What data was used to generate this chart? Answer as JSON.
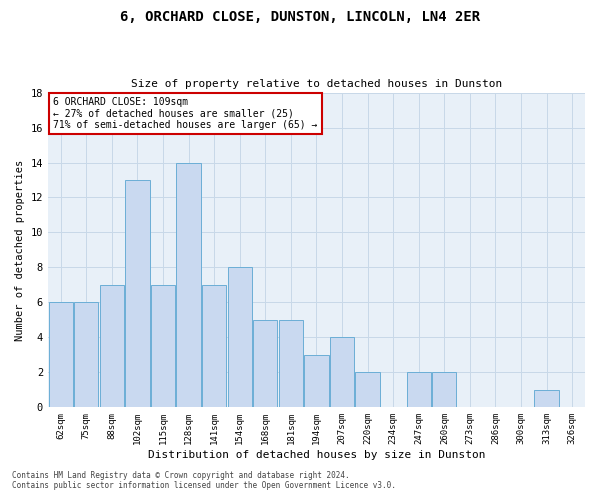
{
  "title": "6, ORCHARD CLOSE, DUNSTON, LINCOLN, LN4 2ER",
  "subtitle": "Size of property relative to detached houses in Dunston",
  "xlabel": "Distribution of detached houses by size in Dunston",
  "ylabel": "Number of detached properties",
  "bins": [
    "62sqm",
    "75sqm",
    "88sqm",
    "102sqm",
    "115sqm",
    "128sqm",
    "141sqm",
    "154sqm",
    "168sqm",
    "181sqm",
    "194sqm",
    "207sqm",
    "220sqm",
    "234sqm",
    "247sqm",
    "260sqm",
    "273sqm",
    "286sqm",
    "300sqm",
    "313sqm",
    "326sqm"
  ],
  "values": [
    6,
    6,
    7,
    13,
    7,
    14,
    7,
    8,
    5,
    5,
    3,
    4,
    2,
    0,
    2,
    2,
    0,
    0,
    0,
    1,
    0
  ],
  "bar_color": "#c9d9f0",
  "bar_edge_color": "#6baed6",
  "grid_color": "#c8d8e8",
  "bg_color": "#e8f0f8",
  "annotation_box_text": "6 ORCHARD CLOSE: 109sqm\n← 27% of detached houses are smaller (25)\n71% of semi-detached houses are larger (65) →",
  "annotation_box_color": "#ffffff",
  "annotation_box_edge_color": "#cc0000",
  "ylim": [
    0,
    18
  ],
  "yticks": [
    0,
    2,
    4,
    6,
    8,
    10,
    12,
    14,
    16,
    18
  ],
  "footer_line1": "Contains HM Land Registry data © Crown copyright and database right 2024.",
  "footer_line2": "Contains public sector information licensed under the Open Government Licence v3.0."
}
